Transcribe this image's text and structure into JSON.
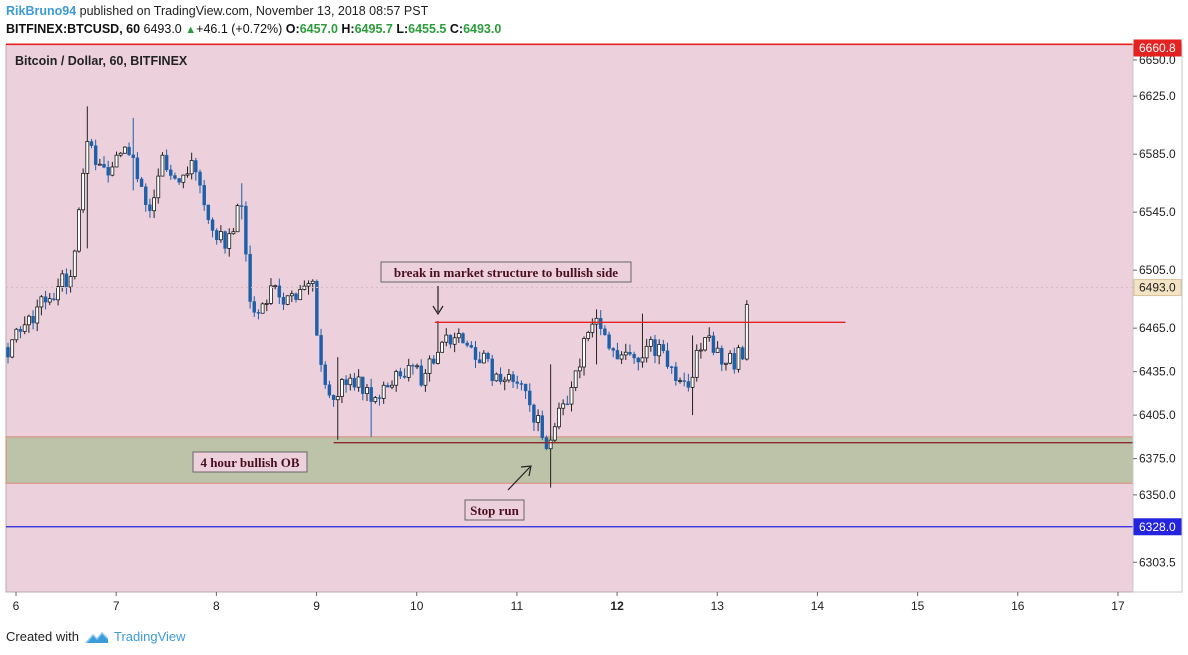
{
  "header": {
    "user": "RikBruno94",
    "published": "published on TradingView.com, November 13, 2018 08:57 PST",
    "symbol": "BITFINEX:BTCUSD, 60",
    "last": "6493.0",
    "change": "+46.1 (+0.72%)",
    "o_label": "O:",
    "o_value": "6457.0",
    "h_label": "H:",
    "h_value": "6495.7",
    "l_label": "L:",
    "l_value": "6455.5",
    "c_label": "C:",
    "c_value": "6493.0"
  },
  "footer": {
    "created_with": "Created with",
    "brand": "TradingView"
  },
  "colors": {
    "background": "#ecd0dc",
    "zone_fill": "#bcc3a8",
    "up_candle": "#ffffff",
    "down_candle": "#1d5fa8",
    "resistance": "#e52222",
    "support": "#8b2b2b",
    "blue_line": "#2424e0",
    "red_tag": "#e52222",
    "blue_tag": "#2424e0"
  },
  "chart_data": {
    "type": "candlestick",
    "title": "Bitcoin / Dollar, 60, BITFINEX",
    "ylim": [
      6283,
      6661
    ],
    "xlim": [
      5.9,
      17.15
    ],
    "y_ticks": [
      "6650.0",
      "6625.0",
      "6585.0",
      "6545.0",
      "6505.0",
      "6465.0",
      "6435.0",
      "6405.0",
      "6375.0",
      "6350.0",
      "6303.5"
    ],
    "x_ticks": [
      {
        "label": "6",
        "x": 6
      },
      {
        "label": "7",
        "x": 7
      },
      {
        "label": "8",
        "x": 8
      },
      {
        "label": "9",
        "x": 9
      },
      {
        "label": "10",
        "x": 10
      },
      {
        "label": "11",
        "x": 11
      },
      {
        "label": "12",
        "x": 12,
        "bold": true
      },
      {
        "label": "13",
        "x": 13
      },
      {
        "label": "14",
        "x": 14
      },
      {
        "label": "15",
        "x": 15
      },
      {
        "label": "16",
        "x": 16
      },
      {
        "label": "17",
        "x": 17
      }
    ],
    "price_tags": [
      {
        "label": "6660.8",
        "value": 6660.8,
        "style": "red"
      },
      {
        "label": "6493.0",
        "value": 6493.0,
        "style": "light"
      },
      {
        "label": "6328.0",
        "value": 6328.0,
        "style": "blue"
      }
    ],
    "zone": {
      "name": "4 hour bullish OB",
      "top": 6390,
      "bottom": 6358,
      "x_start": 5.9
    },
    "lines": [
      {
        "name": "resistance",
        "value": 6469,
        "x_start": 10.18,
        "x_end": 14.28
      },
      {
        "name": "support",
        "value": 6386,
        "x_start": 9.17,
        "x_end": 17.15
      },
      {
        "name": "blue-horizontal",
        "value": 6328,
        "x_start": 5.9,
        "x_end": 17.15
      },
      {
        "name": "top-red",
        "value": 6660.8,
        "x_start": 5.9,
        "x_end": 17.15
      }
    ],
    "annotations": {
      "break": "break in market structure to bullish side",
      "ob": "4 hour bullish OB",
      "stop": "Stop run"
    },
    "anchors": [
      {
        "t": 5.9,
        "p": 6450
      },
      {
        "t": 6.15,
        "p": 6472
      },
      {
        "t": 6.35,
        "p": 6490
      },
      {
        "t": 6.55,
        "p": 6500
      },
      {
        "t": 6.7,
        "p": 6590
      },
      {
        "t": 6.9,
        "p": 6575
      },
      {
        "t": 7.1,
        "p": 6585
      },
      {
        "t": 7.25,
        "p": 6570
      },
      {
        "t": 7.35,
        "p": 6540
      },
      {
        "t": 7.45,
        "p": 6580
      },
      {
        "t": 7.6,
        "p": 6570
      },
      {
        "t": 7.75,
        "p": 6580
      },
      {
        "t": 7.9,
        "p": 6540
      },
      {
        "t": 8.1,
        "p": 6520
      },
      {
        "t": 8.25,
        "p": 6555
      },
      {
        "t": 8.35,
        "p": 6478
      },
      {
        "t": 8.55,
        "p": 6490
      },
      {
        "t": 8.75,
        "p": 6485
      },
      {
        "t": 8.95,
        "p": 6500
      },
      {
        "t": 9.05,
        "p": 6430
      },
      {
        "t": 9.2,
        "p": 6420
      },
      {
        "t": 9.35,
        "p": 6430
      },
      {
        "t": 9.55,
        "p": 6415
      },
      {
        "t": 9.7,
        "p": 6420
      },
      {
        "t": 9.9,
        "p": 6440
      },
      {
        "t": 10.05,
        "p": 6430
      },
      {
        "t": 10.2,
        "p": 6452
      },
      {
        "t": 10.35,
        "p": 6460
      },
      {
        "t": 10.6,
        "p": 6448
      },
      {
        "t": 10.8,
        "p": 6432
      },
      {
        "t": 11.0,
        "p": 6425
      },
      {
        "t": 11.15,
        "p": 6410
      },
      {
        "t": 11.3,
        "p": 6385
      },
      {
        "t": 11.4,
        "p": 6405
      },
      {
        "t": 11.55,
        "p": 6420
      },
      {
        "t": 11.65,
        "p": 6450
      },
      {
        "t": 11.8,
        "p": 6475
      },
      {
        "t": 11.95,
        "p": 6450
      },
      {
        "t": 12.15,
        "p": 6443
      },
      {
        "t": 12.3,
        "p": 6455
      },
      {
        "t": 12.5,
        "p": 6445
      },
      {
        "t": 12.7,
        "p": 6422
      },
      {
        "t": 12.85,
        "p": 6458
      },
      {
        "t": 13.0,
        "p": 6450
      },
      {
        "t": 13.15,
        "p": 6440
      },
      {
        "t": 13.25,
        "p": 6448
      },
      {
        "t": 13.32,
        "p": 6493
      }
    ]
  }
}
